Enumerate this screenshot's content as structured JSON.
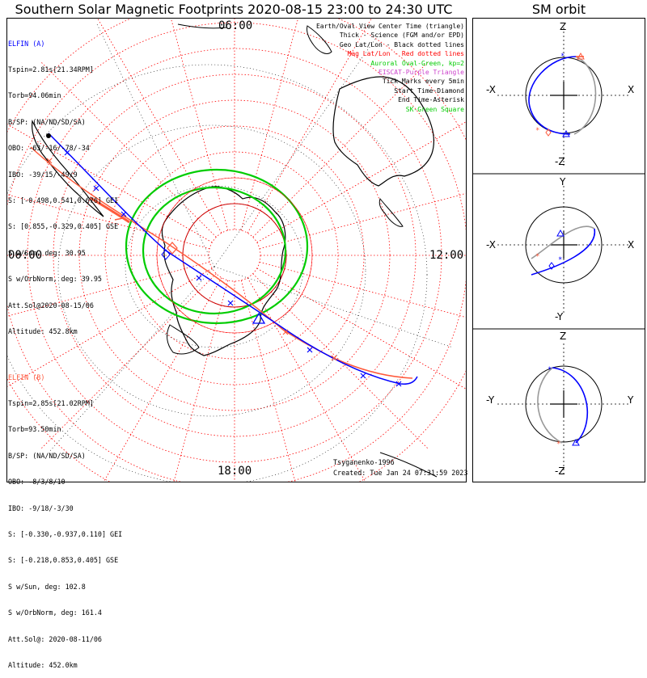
{
  "title": "Southern Solar Magnetic Footprints 2020-08-15 23:00 to 24:30 UTC",
  "sm_panel_title": "SM orbit",
  "hour_labels": {
    "top": "06:00",
    "left": "00:00",
    "right": "12:00",
    "bottom": "18:00"
  },
  "elfin_a": {
    "name": "ELFIN (A)",
    "lines": [
      "Tspin=2.81s[21.34RPM]",
      "Torb=94.06min",
      "B/SP: (NA/ND/SD/SA)",
      "OBO: -63/-16/-78/-34",
      "IBO: -39/15/-49/9",
      "S: [-0.498,0.541,0.676] GEI",
      "S: [0.855,-0.329,0.405] GSE",
      "S w/Sun, deg: 30.95",
      "S w/OrbNorm, deg: 39.95",
      "Att.Sol@2020-08-15/06",
      "Altitude: 452.8km"
    ],
    "color": "#0000ff"
  },
  "elfin_b": {
    "name": "ELFIN (B)",
    "lines": [
      "Tspin=2.85s[21.02RPM]",
      "Torb=93.50min",
      "B/SP: (NA/ND/SD/SA)",
      "OBO: -8/3/8/10",
      "IBO: -9/18/-3/30",
      "S: [-0.330,-0.937,0.110] GEI",
      "S: [-0.218,0.853,0.405] GSE",
      "S w/Sun, deg: 102.8",
      "S w/OrbNorm, deg: 161.4",
      "Att.Sol@: 2020-08-11/06",
      "Altitude: 452.0km"
    ],
    "color": "#ff5a3c"
  },
  "legend": [
    {
      "text": "Earth/Oval View Center Time (triangle)",
      "color": "#000000"
    },
    {
      "text": "Thick - Science (FGM and/or EPD)",
      "color": "#000000"
    },
    {
      "text": "Geo Lat/Lon - Black dotted lines",
      "color": "#000000"
    },
    {
      "text": "Mag Lat/Lon - Red dotted lines",
      "color": "#ff0000"
    },
    {
      "text": "Auroral Oval-Green, kp=2",
      "color": "#00cc00"
    },
    {
      "text": "EISCAT-Purple Triangle",
      "color": "#cc44cc"
    },
    {
      "text": "Tick Marks every 5min",
      "color": "#000000"
    },
    {
      "text": "Start Time-Diamond",
      "color": "#000000"
    },
    {
      "text": "End Time-Asterisk",
      "color": "#000000"
    },
    {
      "text": "SK-Green Square",
      "color": "#00cc00"
    }
  ],
  "credit": "Tsyganenko-1996",
  "created": "Created: Tue Jan 24 07:31:59 2023",
  "sm_axes": [
    {
      "top": "Z",
      "bottom": "-Z",
      "left": "-X",
      "right": "X"
    },
    {
      "top": "Y",
      "bottom": "-Y",
      "left": "-X",
      "right": "X"
    },
    {
      "top": "Z",
      "bottom": "-Z",
      "left": "-Y",
      "right": "Y"
    }
  ],
  "colors": {
    "grid_mag": "#ff0000",
    "oval": "#00cc00",
    "orbit_a": "#0000ff",
    "orbit_b": "#ff5a3c",
    "shadow": "#999999"
  }
}
